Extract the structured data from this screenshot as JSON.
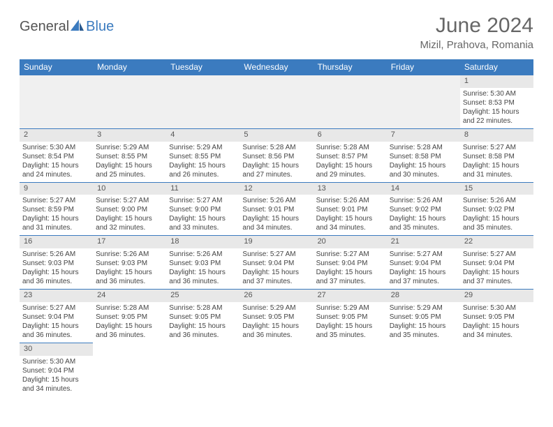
{
  "logo": {
    "text1": "General",
    "text2": "Blue"
  },
  "title": "June 2024",
  "location": "Mizil, Prahova, Romania",
  "colors": {
    "header_bg": "#3b7bbf",
    "header_text": "#ffffff",
    "day_bg": "#e8e8e8",
    "blank_bg": "#f0f0f0",
    "border": "#3b7bbf",
    "logo_gray": "#555555",
    "logo_blue": "#3b7bbf",
    "title_color": "#666666"
  },
  "weekdays": [
    "Sunday",
    "Monday",
    "Tuesday",
    "Wednesday",
    "Thursday",
    "Friday",
    "Saturday"
  ],
  "weeks": [
    [
      null,
      null,
      null,
      null,
      null,
      null,
      {
        "day": "1",
        "sunrise": "Sunrise: 5:30 AM",
        "sunset": "Sunset: 8:53 PM",
        "daylight": "Daylight: 15 hours and 22 minutes."
      }
    ],
    [
      {
        "day": "2",
        "sunrise": "Sunrise: 5:30 AM",
        "sunset": "Sunset: 8:54 PM",
        "daylight": "Daylight: 15 hours and 24 minutes."
      },
      {
        "day": "3",
        "sunrise": "Sunrise: 5:29 AM",
        "sunset": "Sunset: 8:55 PM",
        "daylight": "Daylight: 15 hours and 25 minutes."
      },
      {
        "day": "4",
        "sunrise": "Sunrise: 5:29 AM",
        "sunset": "Sunset: 8:55 PM",
        "daylight": "Daylight: 15 hours and 26 minutes."
      },
      {
        "day": "5",
        "sunrise": "Sunrise: 5:28 AM",
        "sunset": "Sunset: 8:56 PM",
        "daylight": "Daylight: 15 hours and 27 minutes."
      },
      {
        "day": "6",
        "sunrise": "Sunrise: 5:28 AM",
        "sunset": "Sunset: 8:57 PM",
        "daylight": "Daylight: 15 hours and 29 minutes."
      },
      {
        "day": "7",
        "sunrise": "Sunrise: 5:28 AM",
        "sunset": "Sunset: 8:58 PM",
        "daylight": "Daylight: 15 hours and 30 minutes."
      },
      {
        "day": "8",
        "sunrise": "Sunrise: 5:27 AM",
        "sunset": "Sunset: 8:58 PM",
        "daylight": "Daylight: 15 hours and 31 minutes."
      }
    ],
    [
      {
        "day": "9",
        "sunrise": "Sunrise: 5:27 AM",
        "sunset": "Sunset: 8:59 PM",
        "daylight": "Daylight: 15 hours and 31 minutes."
      },
      {
        "day": "10",
        "sunrise": "Sunrise: 5:27 AM",
        "sunset": "Sunset: 9:00 PM",
        "daylight": "Daylight: 15 hours and 32 minutes."
      },
      {
        "day": "11",
        "sunrise": "Sunrise: 5:27 AM",
        "sunset": "Sunset: 9:00 PM",
        "daylight": "Daylight: 15 hours and 33 minutes."
      },
      {
        "day": "12",
        "sunrise": "Sunrise: 5:26 AM",
        "sunset": "Sunset: 9:01 PM",
        "daylight": "Daylight: 15 hours and 34 minutes."
      },
      {
        "day": "13",
        "sunrise": "Sunrise: 5:26 AM",
        "sunset": "Sunset: 9:01 PM",
        "daylight": "Daylight: 15 hours and 34 minutes."
      },
      {
        "day": "14",
        "sunrise": "Sunrise: 5:26 AM",
        "sunset": "Sunset: 9:02 PM",
        "daylight": "Daylight: 15 hours and 35 minutes."
      },
      {
        "day": "15",
        "sunrise": "Sunrise: 5:26 AM",
        "sunset": "Sunset: 9:02 PM",
        "daylight": "Daylight: 15 hours and 35 minutes."
      }
    ],
    [
      {
        "day": "16",
        "sunrise": "Sunrise: 5:26 AM",
        "sunset": "Sunset: 9:03 PM",
        "daylight": "Daylight: 15 hours and 36 minutes."
      },
      {
        "day": "17",
        "sunrise": "Sunrise: 5:26 AM",
        "sunset": "Sunset: 9:03 PM",
        "daylight": "Daylight: 15 hours and 36 minutes."
      },
      {
        "day": "18",
        "sunrise": "Sunrise: 5:26 AM",
        "sunset": "Sunset: 9:03 PM",
        "daylight": "Daylight: 15 hours and 36 minutes."
      },
      {
        "day": "19",
        "sunrise": "Sunrise: 5:27 AM",
        "sunset": "Sunset: 9:04 PM",
        "daylight": "Daylight: 15 hours and 37 minutes."
      },
      {
        "day": "20",
        "sunrise": "Sunrise: 5:27 AM",
        "sunset": "Sunset: 9:04 PM",
        "daylight": "Daylight: 15 hours and 37 minutes."
      },
      {
        "day": "21",
        "sunrise": "Sunrise: 5:27 AM",
        "sunset": "Sunset: 9:04 PM",
        "daylight": "Daylight: 15 hours and 37 minutes."
      },
      {
        "day": "22",
        "sunrise": "Sunrise: 5:27 AM",
        "sunset": "Sunset: 9:04 PM",
        "daylight": "Daylight: 15 hours and 37 minutes."
      }
    ],
    [
      {
        "day": "23",
        "sunrise": "Sunrise: 5:27 AM",
        "sunset": "Sunset: 9:04 PM",
        "daylight": "Daylight: 15 hours and 36 minutes."
      },
      {
        "day": "24",
        "sunrise": "Sunrise: 5:28 AM",
        "sunset": "Sunset: 9:05 PM",
        "daylight": "Daylight: 15 hours and 36 minutes."
      },
      {
        "day": "25",
        "sunrise": "Sunrise: 5:28 AM",
        "sunset": "Sunset: 9:05 PM",
        "daylight": "Daylight: 15 hours and 36 minutes."
      },
      {
        "day": "26",
        "sunrise": "Sunrise: 5:29 AM",
        "sunset": "Sunset: 9:05 PM",
        "daylight": "Daylight: 15 hours and 36 minutes."
      },
      {
        "day": "27",
        "sunrise": "Sunrise: 5:29 AM",
        "sunset": "Sunset: 9:05 PM",
        "daylight": "Daylight: 15 hours and 35 minutes."
      },
      {
        "day": "28",
        "sunrise": "Sunrise: 5:29 AM",
        "sunset": "Sunset: 9:05 PM",
        "daylight": "Daylight: 15 hours and 35 minutes."
      },
      {
        "day": "29",
        "sunrise": "Sunrise: 5:30 AM",
        "sunset": "Sunset: 9:05 PM",
        "daylight": "Daylight: 15 hours and 34 minutes."
      }
    ],
    [
      {
        "day": "30",
        "sunrise": "Sunrise: 5:30 AM",
        "sunset": "Sunset: 9:04 PM",
        "daylight": "Daylight: 15 hours and 34 minutes."
      },
      null,
      null,
      null,
      null,
      null,
      null
    ]
  ]
}
